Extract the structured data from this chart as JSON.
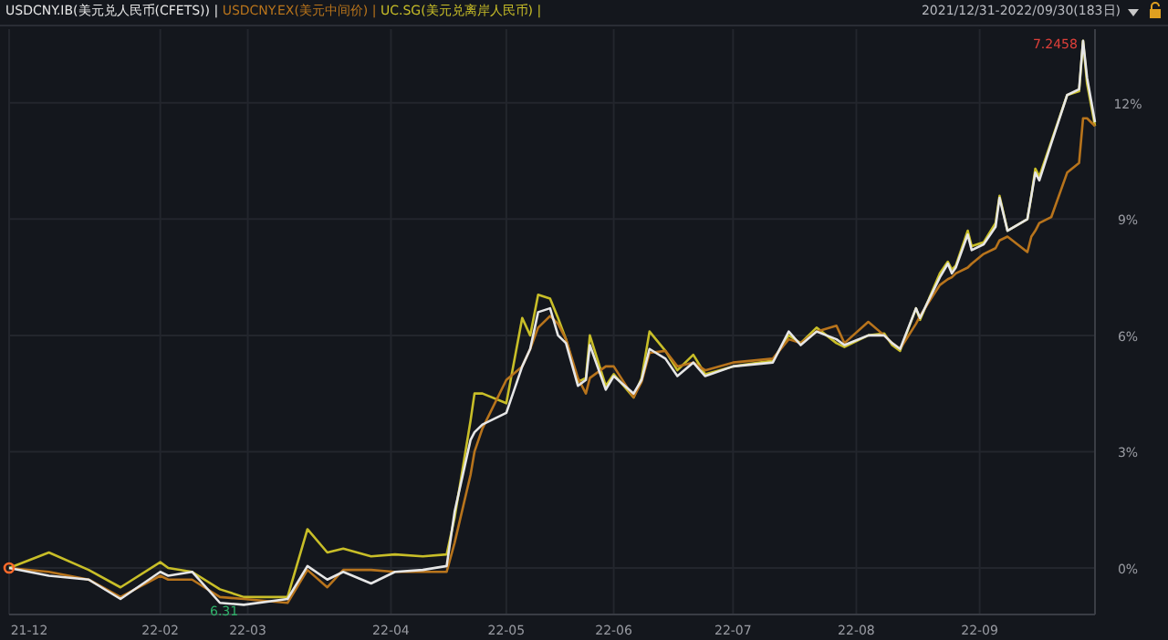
{
  "chart_data": {
    "type": "line",
    "x": [
      "2021-12-31",
      "2022-01-10",
      "2022-01-20",
      "2022-01-28",
      "2022-02-07",
      "2022-02-09",
      "2022-02-15",
      "2022-02-22",
      "2022-02-28",
      "2022-03-11",
      "2022-03-16",
      "2022-03-21",
      "2022-03-25",
      "2022-04-01",
      "2022-04-07",
      "2022-04-14",
      "2022-04-20",
      "2022-04-22",
      "2022-04-26",
      "2022-04-27",
      "2022-04-29",
      "2022-05-05",
      "2022-05-09",
      "2022-05-11",
      "2022-05-13",
      "2022-05-16",
      "2022-05-18",
      "2022-05-20",
      "2022-05-23",
      "2022-05-25",
      "2022-05-26",
      "2022-05-30",
      "2022-06-01",
      "2022-06-06",
      "2022-06-08",
      "2022-06-10",
      "2022-06-14",
      "2022-06-17",
      "2022-06-21",
      "2022-06-24",
      "2022-07-01",
      "2022-07-11",
      "2022-07-15",
      "2022-07-18",
      "2022-07-22",
      "2022-07-27",
      "2022-07-29",
      "2022-08-04",
      "2022-08-08",
      "2022-08-10",
      "2022-08-12",
      "2022-08-16",
      "2022-08-17",
      "2022-08-22",
      "2022-08-24",
      "2022-08-25",
      "2022-08-26",
      "2022-08-29",
      "2022-08-30",
      "2022-09-02",
      "2022-09-05",
      "2022-09-06",
      "2022-09-08",
      "2022-09-13",
      "2022-09-14",
      "2022-09-15",
      "2022-09-16",
      "2022-09-19",
      "2022-09-23",
      "2022-09-26",
      "2022-09-27",
      "2022-09-28",
      "2022-09-30"
    ],
    "series": [
      {
        "name": "USDCNY.IB(美元兑人民币(CFETS)) |",
        "color": "#e6e6e6",
        "values": [
          0,
          -0.2,
          -0.3,
          -0.8,
          -0.1,
          -0.2,
          -0.1,
          -0.9,
          -0.95,
          -0.8,
          0.05,
          -0.3,
          -0.1,
          -0.4,
          -0.1,
          -0.05,
          0.05,
          1.45,
          3.3,
          3.5,
          3.7,
          4.0,
          5.2,
          5.65,
          6.6,
          6.7,
          6.0,
          5.8,
          4.7,
          4.85,
          5.75,
          4.6,
          4.95,
          4.5,
          4.85,
          5.65,
          5.4,
          4.95,
          5.3,
          4.95,
          5.2,
          5.3,
          6.1,
          5.75,
          6.1,
          5.9,
          5.75,
          6.0,
          6.0,
          5.8,
          5.65,
          6.7,
          6.45,
          7.5,
          7.85,
          7.6,
          7.75,
          8.6,
          8.2,
          8.35,
          8.8,
          9.55,
          8.7,
          9.0,
          9.6,
          10.2,
          10.0,
          10.95,
          12.2,
          12.35,
          13.6,
          12.65,
          11.5
        ]
      },
      {
        "name": "USDCNY.EX(美元中间价) |",
        "color": "#b8741c",
        "values": [
          0,
          -0.1,
          -0.3,
          -0.75,
          -0.2,
          -0.3,
          -0.3,
          -0.75,
          -0.8,
          -0.9,
          -0.05,
          -0.5,
          -0.05,
          -0.05,
          -0.1,
          -0.1,
          -0.1,
          0.65,
          2.4,
          3.0,
          3.6,
          4.85,
          5.2,
          5.65,
          6.2,
          6.5,
          6.3,
          5.9,
          4.9,
          4.5,
          4.9,
          5.2,
          5.2,
          4.4,
          4.8,
          5.55,
          5.6,
          5.2,
          5.3,
          5.1,
          5.3,
          5.4,
          5.9,
          5.8,
          6.1,
          6.25,
          5.8,
          6.35,
          6.0,
          5.8,
          5.65,
          6.3,
          6.5,
          7.3,
          7.45,
          7.5,
          7.6,
          7.75,
          7.85,
          8.1,
          8.25,
          8.45,
          8.55,
          8.15,
          8.55,
          8.7,
          8.9,
          9.05,
          10.2,
          10.45,
          11.6,
          11.6,
          11.4
        ]
      },
      {
        "name": "UC.SG(美元兑离岸人民币) |",
        "color": "#c8be28",
        "values": [
          0,
          0.4,
          -0.05,
          -0.5,
          0.15,
          0.0,
          -0.1,
          -0.55,
          -0.75,
          -0.75,
          1.0,
          0.4,
          0.5,
          0.3,
          0.35,
          0.3,
          0.35,
          1.3,
          3.8,
          4.5,
          4.5,
          4.25,
          6.45,
          6.0,
          7.05,
          6.95,
          6.45,
          5.9,
          4.8,
          4.9,
          6.0,
          4.7,
          5.0,
          4.4,
          4.9,
          6.1,
          5.6,
          5.1,
          5.5,
          5.0,
          5.2,
          5.35,
          6.0,
          5.8,
          6.2,
          5.8,
          5.7,
          6.0,
          6.05,
          5.75,
          5.6,
          6.7,
          6.4,
          7.6,
          7.9,
          7.7,
          7.8,
          8.7,
          8.3,
          8.4,
          8.9,
          9.6,
          8.7,
          9.0,
          9.6,
          10.3,
          10.1,
          11.0,
          12.2,
          12.3,
          13.6,
          12.5,
          11.4
        ]
      }
    ],
    "xlim": [
      "2021-12-31",
      "2022-09-30"
    ],
    "xticks": [
      {
        "value": "2021-12-31",
        "label": "21-12"
      },
      {
        "value": "2022-02-07",
        "label": "22-02"
      },
      {
        "value": "2022-03-01",
        "label": "22-03"
      },
      {
        "value": "2022-04-06",
        "label": "22-04"
      },
      {
        "value": "2022-05-05",
        "label": "22-05"
      },
      {
        "value": "2022-06-01",
        "label": "22-06"
      },
      {
        "value": "2022-07-01",
        "label": "22-07"
      },
      {
        "value": "2022-08-01",
        "label": "22-08"
      },
      {
        "value": "2022-09-01",
        "label": "22-09"
      }
    ],
    "ylim": [
      -1.2,
      13.9
    ],
    "yticks": [
      {
        "value": 0,
        "label": "0%"
      },
      {
        "value": 3,
        "label": "3%"
      },
      {
        "value": 6,
        "label": "6%"
      },
      {
        "value": 9,
        "label": "9%"
      },
      {
        "value": 12,
        "label": "12%"
      }
    ],
    "grid": true,
    "annotations": [
      "2021/12/31-2022/09/30(183日)",
      {
        "text": "7.2458",
        "x": "2022-09-27",
        "y": 13.6
      },
      {
        "text": "6.31",
        "x": "2022-02-28",
        "y": -0.95
      }
    ]
  }
}
